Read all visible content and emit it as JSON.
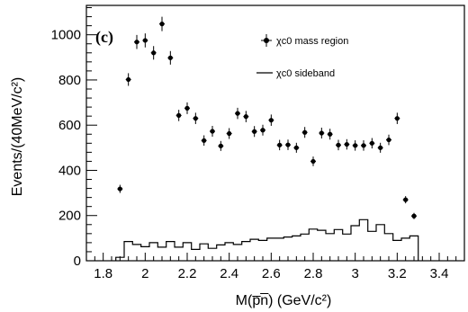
{
  "chart_data": {
    "type": "scatter",
    "panel_label": "(c)",
    "xlabel": "M(p̅n̅) (GeV/c²)",
    "ylabel": "Events/(40MeV/c²)",
    "xlim": [
      1.72,
      3.52
    ],
    "ylim": [
      0,
      1130
    ],
    "x_ticks": [
      1.8,
      2.0,
      2.2,
      2.4,
      2.6,
      2.8,
      3.0,
      3.2,
      3.4
    ],
    "x_tick_labels": [
      "1.8",
      "2",
      "2.2",
      "2.4",
      "2.6",
      "2.8",
      "3",
      "3.2",
      "3.4"
    ],
    "y_ticks": [
      0,
      200,
      400,
      600,
      800,
      1000
    ],
    "y_tick_labels": [
      "0",
      "200",
      "400",
      "600",
      "800",
      "1000"
    ],
    "legend": {
      "placement": "top-right",
      "entries": [
        {
          "label": "χc0 mass region",
          "style": "points"
        },
        {
          "label": "χc0 sideband",
          "style": "histogram"
        }
      ]
    },
    "series": [
      {
        "name": "χc0 mass region",
        "style": "points-with-errorbars",
        "x": [
          1.88,
          1.92,
          1.96,
          2.0,
          2.04,
          2.08,
          2.12,
          2.16,
          2.2,
          2.24,
          2.28,
          2.32,
          2.36,
          2.4,
          2.44,
          2.48,
          2.52,
          2.56,
          2.6,
          2.64,
          2.68,
          2.72,
          2.76,
          2.8,
          2.84,
          2.88,
          2.92,
          2.96,
          3.0,
          3.04,
          3.08,
          3.12,
          3.16,
          3.2,
          3.24,
          3.28
        ],
        "y": [
          318,
          802,
          968,
          975,
          920,
          1048,
          898,
          643,
          675,
          630,
          532,
          573,
          508,
          563,
          652,
          638,
          572,
          578,
          622,
          512,
          513,
          500,
          568,
          440,
          565,
          560,
          512,
          515,
          510,
          510,
          520,
          500,
          535,
          630,
          270,
          198
        ],
        "yerr": [
          18,
          28,
          31,
          31,
          30,
          32,
          30,
          25,
          26,
          25,
          23,
          24,
          22,
          24,
          25,
          25,
          24,
          24,
          25,
          23,
          23,
          22,
          24,
          21,
          24,
          24,
          23,
          23,
          23,
          23,
          23,
          22,
          23,
          25,
          16,
          14
        ]
      },
      {
        "name": "χc0 sideband",
        "style": "histogram",
        "bin_width": 0.04,
        "bin_starts": [
          1.86,
          1.9,
          1.94,
          1.98,
          2.02,
          2.06,
          2.1,
          2.14,
          2.18,
          2.22,
          2.26,
          2.3,
          2.34,
          2.38,
          2.42,
          2.46,
          2.5,
          2.54,
          2.58,
          2.62,
          2.66,
          2.7,
          2.74,
          2.78,
          2.82,
          2.86,
          2.9,
          2.94,
          2.98,
          3.02,
          3.06,
          3.1,
          3.14,
          3.18,
          3.22,
          3.26
        ],
        "values": [
          15,
          85,
          72,
          62,
          80,
          60,
          85,
          60,
          80,
          50,
          75,
          55,
          70,
          80,
          72,
          85,
          95,
          90,
          100,
          100,
          105,
          110,
          118,
          140,
          135,
          120,
          138,
          118,
          155,
          182,
          130,
          160,
          120,
          90,
          100,
          110
        ]
      }
    ]
  }
}
